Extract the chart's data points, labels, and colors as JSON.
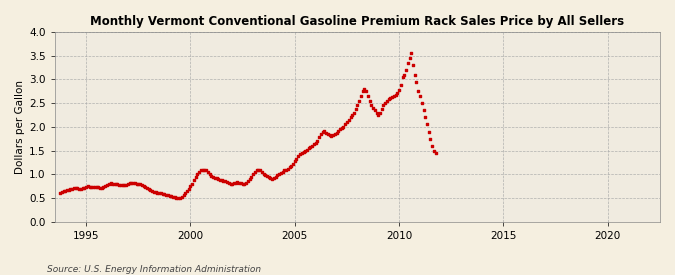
{
  "title": "Monthly Vermont Conventional Gasoline Premium Rack Sales Price by All Sellers",
  "ylabel": "Dollars per Gallon",
  "source": "Source: U.S. Energy Information Administration",
  "background_color": "#f5efe0",
  "plot_bg_color": "#f0ebe0",
  "dot_color": "#cc0000",
  "ylim": [
    0.0,
    4.0
  ],
  "yticks": [
    0.0,
    0.5,
    1.0,
    1.5,
    2.0,
    2.5,
    3.0,
    3.5,
    4.0
  ],
  "xlim_start": 1993.5,
  "xlim_end": 2022.5,
  "xticks": [
    1995,
    2000,
    2005,
    2010,
    2015,
    2020
  ],
  "data": [
    [
      1993.75,
      0.61
    ],
    [
      1993.83,
      0.63
    ],
    [
      1993.92,
      0.64
    ],
    [
      1994.0,
      0.65
    ],
    [
      1994.08,
      0.66
    ],
    [
      1994.17,
      0.67
    ],
    [
      1994.25,
      0.68
    ],
    [
      1994.33,
      0.7
    ],
    [
      1994.42,
      0.71
    ],
    [
      1994.5,
      0.72
    ],
    [
      1994.58,
      0.71
    ],
    [
      1994.67,
      0.7
    ],
    [
      1994.75,
      0.7
    ],
    [
      1994.83,
      0.71
    ],
    [
      1994.92,
      0.72
    ],
    [
      1995.0,
      0.74
    ],
    [
      1995.08,
      0.75
    ],
    [
      1995.17,
      0.74
    ],
    [
      1995.25,
      0.73
    ],
    [
      1995.33,
      0.73
    ],
    [
      1995.42,
      0.74
    ],
    [
      1995.5,
      0.74
    ],
    [
      1995.58,
      0.73
    ],
    [
      1995.67,
      0.72
    ],
    [
      1995.75,
      0.72
    ],
    [
      1995.83,
      0.73
    ],
    [
      1995.92,
      0.75
    ],
    [
      1996.0,
      0.78
    ],
    [
      1996.08,
      0.8
    ],
    [
      1996.17,
      0.81
    ],
    [
      1996.25,
      0.8
    ],
    [
      1996.33,
      0.79
    ],
    [
      1996.42,
      0.79
    ],
    [
      1996.5,
      0.79
    ],
    [
      1996.58,
      0.78
    ],
    [
      1996.67,
      0.77
    ],
    [
      1996.75,
      0.77
    ],
    [
      1996.83,
      0.77
    ],
    [
      1996.92,
      0.78
    ],
    [
      1997.0,
      0.8
    ],
    [
      1997.08,
      0.81
    ],
    [
      1997.17,
      0.82
    ],
    [
      1997.25,
      0.82
    ],
    [
      1997.33,
      0.81
    ],
    [
      1997.42,
      0.8
    ],
    [
      1997.5,
      0.8
    ],
    [
      1997.58,
      0.79
    ],
    [
      1997.67,
      0.78
    ],
    [
      1997.75,
      0.76
    ],
    [
      1997.83,
      0.73
    ],
    [
      1997.92,
      0.71
    ],
    [
      1998.0,
      0.69
    ],
    [
      1998.08,
      0.67
    ],
    [
      1998.17,
      0.65
    ],
    [
      1998.25,
      0.63
    ],
    [
      1998.33,
      0.62
    ],
    [
      1998.42,
      0.61
    ],
    [
      1998.5,
      0.61
    ],
    [
      1998.58,
      0.6
    ],
    [
      1998.67,
      0.59
    ],
    [
      1998.75,
      0.58
    ],
    [
      1998.83,
      0.57
    ],
    [
      1998.92,
      0.56
    ],
    [
      1999.0,
      0.55
    ],
    [
      1999.08,
      0.54
    ],
    [
      1999.17,
      0.53
    ],
    [
      1999.25,
      0.52
    ],
    [
      1999.33,
      0.51
    ],
    [
      1999.42,
      0.5
    ],
    [
      1999.5,
      0.51
    ],
    [
      1999.58,
      0.53
    ],
    [
      1999.67,
      0.56
    ],
    [
      1999.75,
      0.6
    ],
    [
      1999.83,
      0.65
    ],
    [
      1999.92,
      0.7
    ],
    [
      2000.0,
      0.75
    ],
    [
      2000.08,
      0.8
    ],
    [
      2000.17,
      0.88
    ],
    [
      2000.25,
      0.95
    ],
    [
      2000.33,
      1.0
    ],
    [
      2000.42,
      1.05
    ],
    [
      2000.5,
      1.08
    ],
    [
      2000.58,
      1.1
    ],
    [
      2000.67,
      1.1
    ],
    [
      2000.75,
      1.08
    ],
    [
      2000.83,
      1.05
    ],
    [
      2000.92,
      1.0
    ],
    [
      2001.0,
      0.97
    ],
    [
      2001.08,
      0.95
    ],
    [
      2001.17,
      0.93
    ],
    [
      2001.25,
      0.92
    ],
    [
      2001.33,
      0.9
    ],
    [
      2001.42,
      0.88
    ],
    [
      2001.5,
      0.87
    ],
    [
      2001.58,
      0.86
    ],
    [
      2001.67,
      0.85
    ],
    [
      2001.75,
      0.84
    ],
    [
      2001.83,
      0.82
    ],
    [
      2001.92,
      0.8
    ],
    [
      2002.0,
      0.8
    ],
    [
      2002.08,
      0.81
    ],
    [
      2002.17,
      0.82
    ],
    [
      2002.25,
      0.83
    ],
    [
      2002.33,
      0.82
    ],
    [
      2002.42,
      0.81
    ],
    [
      2002.5,
      0.8
    ],
    [
      2002.58,
      0.8
    ],
    [
      2002.67,
      0.82
    ],
    [
      2002.75,
      0.85
    ],
    [
      2002.83,
      0.9
    ],
    [
      2002.92,
      0.95
    ],
    [
      2003.0,
      1.0
    ],
    [
      2003.08,
      1.05
    ],
    [
      2003.17,
      1.08
    ],
    [
      2003.25,
      1.1
    ],
    [
      2003.33,
      1.08
    ],
    [
      2003.42,
      1.05
    ],
    [
      2003.5,
      1.0
    ],
    [
      2003.58,
      0.98
    ],
    [
      2003.67,
      0.97
    ],
    [
      2003.75,
      0.95
    ],
    [
      2003.83,
      0.92
    ],
    [
      2003.92,
      0.9
    ],
    [
      2004.0,
      0.92
    ],
    [
      2004.08,
      0.95
    ],
    [
      2004.17,
      0.98
    ],
    [
      2004.25,
      1.0
    ],
    [
      2004.33,
      1.03
    ],
    [
      2004.42,
      1.05
    ],
    [
      2004.5,
      1.08
    ],
    [
      2004.58,
      1.1
    ],
    [
      2004.67,
      1.12
    ],
    [
      2004.75,
      1.15
    ],
    [
      2004.83,
      1.18
    ],
    [
      2004.92,
      1.22
    ],
    [
      2005.0,
      1.27
    ],
    [
      2005.08,
      1.32
    ],
    [
      2005.17,
      1.38
    ],
    [
      2005.25,
      1.42
    ],
    [
      2005.33,
      1.45
    ],
    [
      2005.42,
      1.47
    ],
    [
      2005.5,
      1.5
    ],
    [
      2005.58,
      1.52
    ],
    [
      2005.67,
      1.55
    ],
    [
      2005.75,
      1.57
    ],
    [
      2005.83,
      1.6
    ],
    [
      2005.92,
      1.63
    ],
    [
      2006.0,
      1.65
    ],
    [
      2006.08,
      1.7
    ],
    [
      2006.17,
      1.78
    ],
    [
      2006.25,
      1.85
    ],
    [
      2006.33,
      1.9
    ],
    [
      2006.42,
      1.92
    ],
    [
      2006.5,
      1.88
    ],
    [
      2006.58,
      1.85
    ],
    [
      2006.67,
      1.82
    ],
    [
      2006.75,
      1.8
    ],
    [
      2006.83,
      1.82
    ],
    [
      2006.92,
      1.85
    ],
    [
      2007.0,
      1.88
    ],
    [
      2007.08,
      1.92
    ],
    [
      2007.17,
      1.95
    ],
    [
      2007.25,
      1.98
    ],
    [
      2007.33,
      2.0
    ],
    [
      2007.42,
      2.05
    ],
    [
      2007.5,
      2.1
    ],
    [
      2007.58,
      2.15
    ],
    [
      2007.67,
      2.2
    ],
    [
      2007.75,
      2.25
    ],
    [
      2007.83,
      2.3
    ],
    [
      2007.92,
      2.38
    ],
    [
      2008.0,
      2.45
    ],
    [
      2008.08,
      2.55
    ],
    [
      2008.17,
      2.65
    ],
    [
      2008.25,
      2.75
    ],
    [
      2008.33,
      2.8
    ],
    [
      2008.42,
      2.75
    ],
    [
      2008.5,
      2.65
    ],
    [
      2008.58,
      2.55
    ],
    [
      2008.67,
      2.45
    ],
    [
      2008.75,
      2.4
    ],
    [
      2008.83,
      2.35
    ],
    [
      2008.92,
      2.3
    ],
    [
      2009.0,
      2.25
    ],
    [
      2009.08,
      2.3
    ],
    [
      2009.17,
      2.38
    ],
    [
      2009.25,
      2.45
    ],
    [
      2009.33,
      2.5
    ],
    [
      2009.42,
      2.55
    ],
    [
      2009.5,
      2.58
    ],
    [
      2009.58,
      2.6
    ],
    [
      2009.67,
      2.62
    ],
    [
      2009.75,
      2.65
    ],
    [
      2009.83,
      2.68
    ],
    [
      2009.92,
      2.72
    ],
    [
      2010.0,
      2.78
    ],
    [
      2010.08,
      2.88
    ],
    [
      2010.17,
      3.05
    ],
    [
      2010.25,
      3.1
    ],
    [
      2010.33,
      3.2
    ],
    [
      2010.42,
      3.35
    ],
    [
      2010.5,
      3.45
    ],
    [
      2010.58,
      3.55
    ],
    [
      2010.67,
      3.3
    ],
    [
      2010.75,
      3.1
    ],
    [
      2010.83,
      2.95
    ],
    [
      2010.92,
      2.75
    ],
    [
      2011.0,
      2.65
    ],
    [
      2011.08,
      2.5
    ],
    [
      2011.17,
      2.35
    ],
    [
      2011.25,
      2.2
    ],
    [
      2011.33,
      2.05
    ],
    [
      2011.42,
      1.9
    ],
    [
      2011.5,
      1.75
    ],
    [
      2011.58,
      1.6
    ],
    [
      2011.67,
      1.5
    ],
    [
      2011.75,
      1.45
    ]
  ]
}
